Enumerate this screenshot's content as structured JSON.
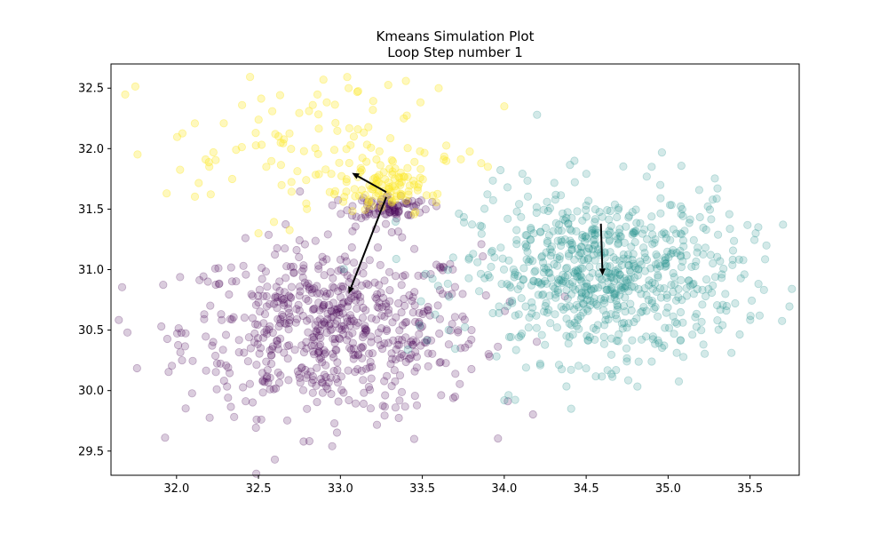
{
  "chart_data": {
    "type": "scatter",
    "title": "Kmeans Simulation Plot",
    "subtitle": "Loop Step number 1",
    "xlabel": "",
    "ylabel": "",
    "xlim": [
      31.6,
      35.8
    ],
    "ylim": [
      29.3,
      32.7
    ],
    "xticks": [
      "32.0",
      "32.5",
      "33.0",
      "33.5",
      "34.0",
      "34.5",
      "35.0",
      "35.5"
    ],
    "yticks": [
      "29.5",
      "30.0",
      "30.5",
      "31.0",
      "31.5",
      "32.0",
      "32.5"
    ],
    "grid": false,
    "legend": "none",
    "series": [
      {
        "color": "#440154",
        "alpha": 0.2,
        "clusters": [
          {
            "center": [
              32.95,
              30.5
            ],
            "spread": [
              0.45,
              0.35
            ],
            "count": 650
          },
          {
            "center": [
              33.3,
              31.52
            ],
            "spread": [
              0.12,
              0.05
            ],
            "count": 80
          }
        ],
        "sample_points": [
          [
            31.7,
            30.48
          ],
          [
            32.6,
            29.43
          ],
          [
            32.95,
            29.54
          ],
          [
            33.45,
            29.6
          ],
          [
            33.7,
            29.95
          ],
          [
            33.8,
            30.5
          ],
          [
            33.4,
            31.55
          ]
        ]
      },
      {
        "color": "#21918c",
        "alpha": 0.2,
        "clusters": [
          {
            "center": [
              34.6,
              30.95
            ],
            "spread": [
              0.42,
              0.35
            ],
            "count": 750
          }
        ],
        "sample_points": [
          [
            34.2,
            32.28
          ],
          [
            34.9,
            31.85
          ],
          [
            35.6,
            31.2
          ],
          [
            34.0,
            29.92
          ],
          [
            34.9,
            30.24
          ],
          [
            35.55,
            31.35
          ]
        ]
      },
      {
        "color": "#fde725",
        "alpha": 0.3,
        "clusters": [
          {
            "center": [
              33.25,
              31.65
            ],
            "spread": [
              0.12,
              0.09
            ],
            "count": 80
          },
          {
            "center": [
              32.85,
              32.0
            ],
            "spread": [
              0.45,
              0.28
            ],
            "count": 120
          }
        ],
        "sample_points": [
          [
            33.4,
            32.56
          ],
          [
            33.05,
            32.5
          ],
          [
            33.6,
            32.5
          ],
          [
            32.4,
            32.36
          ],
          [
            32.2,
            31.85
          ],
          [
            33.9,
            31.85
          ],
          [
            32.5,
            31.3
          ],
          [
            34.0,
            32.35
          ]
        ]
      }
    ],
    "arrows": [
      {
        "from": [
          33.28,
          31.6
        ],
        "to": [
          33.05,
          30.8
        ]
      },
      {
        "from": [
          33.28,
          31.64
        ],
        "to": [
          33.07,
          31.8
        ]
      },
      {
        "from": [
          34.59,
          31.38
        ],
        "to": [
          34.6,
          30.95
        ]
      }
    ]
  }
}
